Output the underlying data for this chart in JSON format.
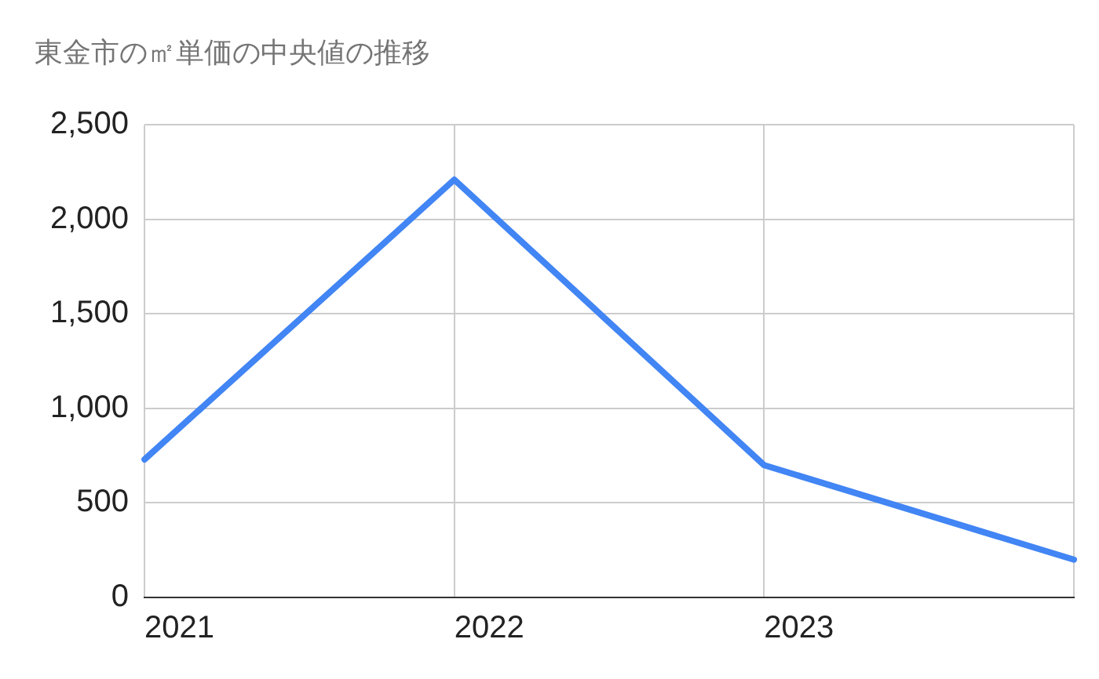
{
  "chart_data": {
    "type": "line",
    "title": "東金市の㎡単価の中央値の推移",
    "categories": [
      "2021",
      "2022",
      "2023",
      null
    ],
    "series": [
      {
        "color": "#4285f4",
        "values": [
          730,
          2210,
          700,
          200
        ]
      }
    ],
    "ylim": [
      0,
      2500
    ],
    "yticks": [
      {
        "value": 0,
        "label": "0"
      },
      {
        "value": 500,
        "label": "500"
      },
      {
        "value": 1000,
        "label": "1,000"
      },
      {
        "value": 1500,
        "label": "1,500"
      },
      {
        "value": 2000,
        "label": "2,000"
      },
      {
        "value": 2500,
        "label": "2,500"
      }
    ],
    "grid": true,
    "legend": false,
    "marker": "none",
    "line_style": "solid"
  }
}
